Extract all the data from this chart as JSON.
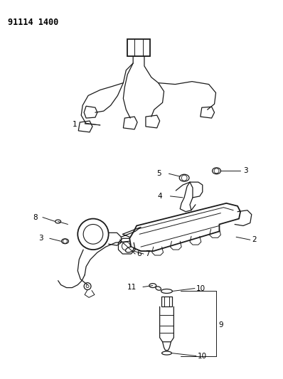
{
  "title": "91114 1400",
  "bg_color": "#ffffff",
  "line_color": "#1a1a1a",
  "label_color": "#000000",
  "title_fontsize": 8.5,
  "label_fontsize": 7.5,
  "figsize": [
    3.98,
    5.33
  ],
  "dpi": 100
}
